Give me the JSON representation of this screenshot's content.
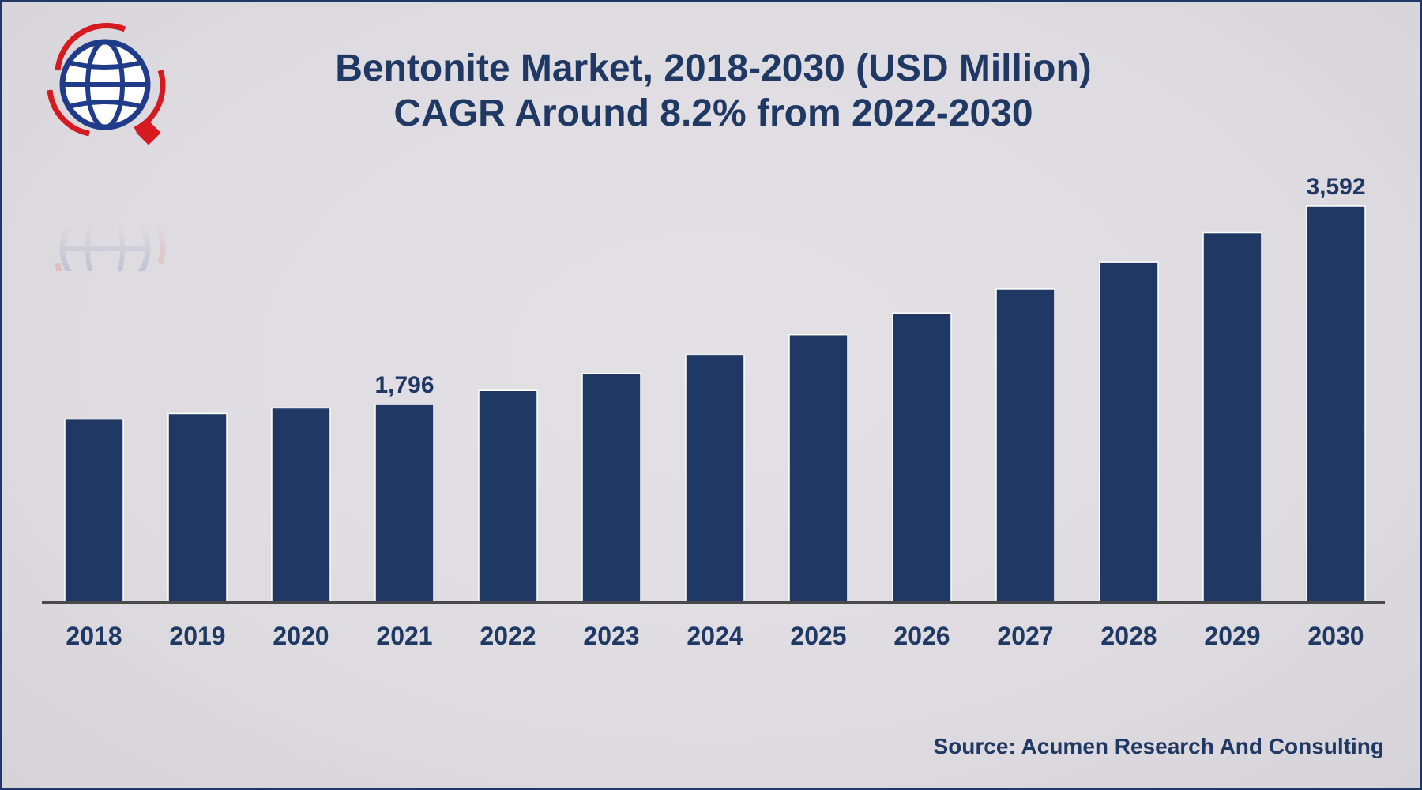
{
  "header": {
    "title_line1": "Bentonite Market, 2018-2030 (USD Million)",
    "title_line2": "CAGR Around 8.2% from 2022-2030"
  },
  "footer": {
    "source": "Source: Acumen Research And Consulting"
  },
  "colors": {
    "bar": "#1f3864",
    "axis": "#4a4a4a",
    "logo_red": "#d71920",
    "logo_blue": "#1f3b8a"
  },
  "logo": {
    "icon": "globe-logo-icon"
  },
  "chart_data": {
    "type": "bar",
    "title": "Bentonite Market, 2018-2030 (USD Million)",
    "subtitle": "CAGR Around 8.2% from 2022-2030",
    "xlabel": "",
    "ylabel": "",
    "categories": [
      "2018",
      "2019",
      "2020",
      "2021",
      "2022",
      "2023",
      "2024",
      "2025",
      "2026",
      "2027",
      "2028",
      "2029",
      "2030"
    ],
    "values": [
      1663,
      1714,
      1764,
      1796,
      1923,
      2077,
      2244,
      2428,
      2624,
      2841,
      3083,
      3352,
      3592
    ],
    "data_labels": [
      "",
      "",
      "",
      "1,796",
      "",
      "",
      "",
      "",
      "",
      "",
      "",
      "",
      "3,592"
    ],
    "ylim": [
      0,
      3592
    ],
    "grid": false,
    "legend": "none"
  }
}
